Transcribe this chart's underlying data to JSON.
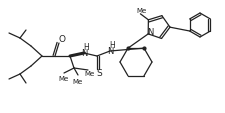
{
  "background_color": "#ffffff",
  "line_color": "#222222",
  "line_width": 0.9,
  "figsize": [
    2.26,
    1.14
  ],
  "dpi": 100,
  "xlim": [
    0,
    226
  ],
  "ylim": [
    0,
    114
  ]
}
